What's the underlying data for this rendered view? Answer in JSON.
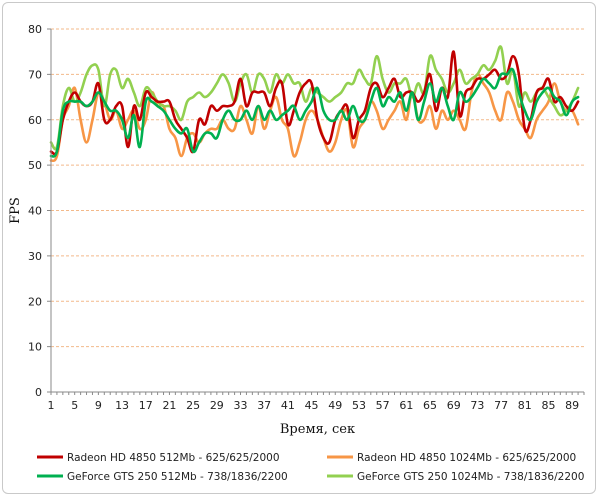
{
  "chart_data": {
    "type": "line",
    "xlabel": "Время, сек",
    "ylabel": "FPS",
    "ylim": [
      0,
      80
    ],
    "xlim": [
      1,
      91
    ],
    "yticks": [
      0,
      10,
      20,
      30,
      40,
      50,
      60,
      70,
      80
    ],
    "xticks": [
      1,
      5,
      9,
      13,
      17,
      21,
      25,
      29,
      33,
      37,
      41,
      45,
      49,
      53,
      57,
      61,
      65,
      69,
      73,
      77,
      81,
      85,
      89
    ],
    "grid": "horizontal dashed",
    "legend_position": "bottom",
    "series": [
      {
        "name": "Radeon HD 4850 512Mb  - 625/625/2000",
        "color": "#c00000",
        "x": [
          1,
          2,
          3,
          4,
          5,
          6,
          7,
          8,
          9,
          10,
          11,
          12,
          13,
          14,
          15,
          16,
          17,
          18,
          19,
          20,
          21,
          22,
          23,
          24,
          25,
          26,
          27,
          28,
          29,
          30,
          31,
          32,
          33,
          34,
          35,
          36,
          37,
          38,
          39,
          40,
          41,
          42,
          43,
          44,
          45,
          46,
          47,
          48,
          49,
          50,
          51,
          52,
          53,
          54,
          55,
          56,
          57,
          58,
          59,
          60,
          61,
          62,
          63,
          64,
          65,
          66,
          67,
          68,
          69,
          70,
          71,
          72,
          73,
          74,
          75,
          76,
          77,
          78,
          79,
          80,
          81,
          82,
          83,
          84,
          85,
          86,
          87,
          88,
          89,
          90
        ],
        "y": [
          53,
          53,
          60,
          64,
          66,
          64,
          63,
          64,
          68,
          60,
          60,
          63,
          63,
          54,
          63,
          60,
          66,
          65,
          64,
          64,
          64,
          60,
          58,
          56,
          53,
          60,
          59,
          63,
          62,
          63,
          63,
          64,
          69,
          63,
          66,
          66,
          66,
          63,
          67,
          68,
          59,
          62,
          66,
          68,
          68,
          60,
          56,
          55,
          60,
          62,
          63,
          56,
          60,
          62,
          67,
          68,
          65,
          67,
          69,
          65,
          66,
          66,
          64,
          66,
          70,
          62,
          67,
          65,
          75,
          61,
          66,
          67,
          69,
          69,
          70,
          71,
          69,
          70,
          74,
          70,
          58,
          60,
          66,
          67,
          69,
          64,
          65,
          63,
          62,
          64
        ]
      },
      {
        "name": "Radeon HD 4850 1024Mb  - 625/625/2000",
        "color": "#f79646",
        "x": [
          1,
          2,
          3,
          4,
          5,
          6,
          7,
          8,
          9,
          10,
          11,
          12,
          13,
          14,
          15,
          16,
          17,
          18,
          19,
          20,
          21,
          22,
          23,
          24,
          25,
          26,
          27,
          28,
          29,
          30,
          31,
          32,
          33,
          34,
          35,
          36,
          37,
          38,
          39,
          40,
          41,
          42,
          43,
          44,
          45,
          46,
          47,
          48,
          49,
          50,
          51,
          52,
          53,
          54,
          55,
          56,
          57,
          58,
          59,
          60,
          61,
          62,
          63,
          64,
          65,
          66,
          67,
          68,
          69,
          70,
          71,
          72,
          73,
          74,
          75,
          76,
          77,
          78,
          79,
          80,
          81,
          82,
          83,
          84,
          85,
          86,
          87,
          88,
          89,
          90
        ],
        "y": [
          51,
          52,
          60,
          63,
          67,
          60,
          55,
          60,
          66,
          64,
          60,
          62,
          58,
          60,
          62,
          58,
          60,
          66,
          63,
          63,
          58,
          56,
          52,
          56,
          57,
          55,
          57,
          58,
          58,
          60,
          58,
          58,
          63,
          60,
          57,
          63,
          58,
          62,
          65,
          60,
          58,
          52,
          55,
          60,
          62,
          60,
          56,
          53,
          55,
          60,
          62,
          54,
          58,
          60,
          64,
          62,
          58,
          60,
          62,
          64,
          60,
          66,
          60,
          60,
          63,
          58,
          62,
          60,
          62,
          60,
          58,
          66,
          70,
          68,
          66,
          62,
          60,
          66,
          64,
          60,
          58,
          56,
          60,
          62,
          64,
          68,
          64,
          62,
          62,
          59
        ]
      },
      {
        "name": "GeForce GTS 250 512Mb  - 738/1836/2200",
        "color": "#00b050",
        "x": [
          1,
          2,
          3,
          4,
          5,
          6,
          7,
          8,
          9,
          10,
          11,
          12,
          13,
          14,
          15,
          16,
          17,
          18,
          19,
          20,
          21,
          22,
          23,
          24,
          25,
          26,
          27,
          28,
          29,
          30,
          31,
          32,
          33,
          34,
          35,
          36,
          37,
          38,
          39,
          40,
          41,
          42,
          43,
          44,
          45,
          46,
          47,
          48,
          49,
          50,
          51,
          52,
          53,
          54,
          55,
          56,
          57,
          58,
          59,
          60,
          61,
          62,
          63,
          64,
          65,
          66,
          67,
          68,
          69,
          70,
          71,
          72,
          73,
          74,
          75,
          76,
          77,
          78,
          79,
          80,
          81,
          82,
          83,
          84,
          85,
          86,
          87,
          88,
          89,
          90
        ],
        "y": [
          52,
          53,
          62,
          64,
          64,
          64,
          63,
          64,
          66,
          64,
          62,
          62,
          60,
          56,
          61,
          54,
          64,
          64,
          63,
          62,
          60,
          58,
          57,
          58,
          53,
          55,
          57,
          57,
          56,
          60,
          62,
          60,
          60,
          62,
          60,
          63,
          60,
          62,
          60,
          61,
          62,
          63,
          60,
          62,
          64,
          67,
          62,
          60,
          60,
          62,
          60,
          63,
          60,
          60,
          64,
          67,
          63,
          65,
          64,
          66,
          62,
          66,
          60,
          64,
          68,
          64,
          67,
          63,
          60,
          66,
          64,
          65,
          67,
          69,
          68,
          67,
          70,
          70,
          71,
          66,
          62,
          60,
          64,
          66,
          67,
          65,
          64,
          61,
          64,
          65
        ]
      },
      {
        "name": "GeForce GTS 250 1024Mb  - 738/1836/2200",
        "color": "#92d050",
        "x": [
          1,
          2,
          3,
          4,
          5,
          6,
          7,
          8,
          9,
          10,
          11,
          12,
          13,
          14,
          15,
          16,
          17,
          18,
          19,
          20,
          21,
          22,
          23,
          24,
          25,
          26,
          27,
          28,
          29,
          30,
          31,
          32,
          33,
          34,
          35,
          36,
          37,
          38,
          39,
          40,
          41,
          42,
          43,
          44,
          45,
          46,
          47,
          48,
          49,
          50,
          51,
          52,
          53,
          54,
          55,
          56,
          57,
          58,
          59,
          60,
          61,
          62,
          63,
          64,
          65,
          66,
          67,
          68,
          69,
          70,
          71,
          72,
          73,
          74,
          75,
          76,
          77,
          78,
          79,
          80,
          81,
          82,
          83,
          84,
          85,
          86,
          87,
          88,
          89,
          90
        ],
        "y": [
          55,
          54,
          63,
          67,
          64,
          66,
          70,
          72,
          71,
          63,
          70,
          71,
          67,
          69,
          66,
          63,
          67,
          66,
          64,
          63,
          63,
          62,
          60,
          64,
          65,
          66,
          65,
          66,
          68,
          70,
          68,
          64,
          68,
          70,
          66,
          70,
          69,
          66,
          70,
          68,
          70,
          68,
          68,
          64,
          67,
          66,
          65,
          64,
          65,
          66,
          68,
          68,
          71,
          69,
          68,
          74,
          69,
          66,
          68,
          68,
          69,
          65,
          68,
          66,
          74,
          71,
          69,
          66,
          68,
          71,
          68,
          69,
          70,
          72,
          71,
          73,
          76,
          68,
          71,
          63,
          66,
          64,
          66,
          67,
          65,
          63,
          61,
          62,
          64,
          67
        ]
      }
    ]
  }
}
